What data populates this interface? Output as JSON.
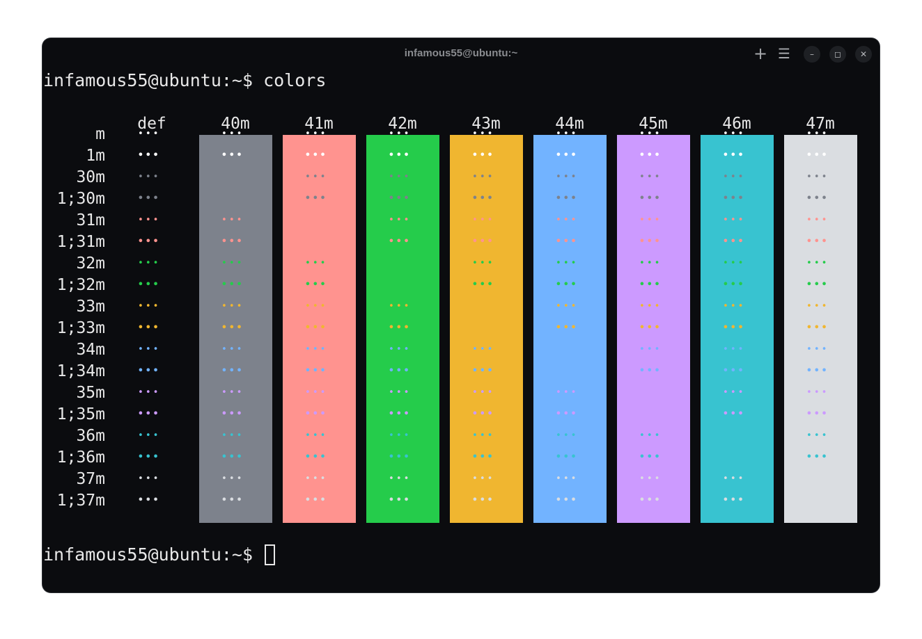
{
  "window": {
    "title": "infamous55@ubuntu:~"
  },
  "titlebar_icons": [
    "plus-icon",
    "menu-icon",
    "minimize-icon",
    "maximize-icon",
    "close-icon"
  ],
  "terminal": {
    "prompt1": "infamous55@ubuntu:~$ colors",
    "prompt2": "infamous55@ubuntu:~$ "
  },
  "table": {
    "sample_text": "•••",
    "columns": [
      {
        "label": "def",
        "bg": null
      },
      {
        "label": "40m",
        "bg": "#7d828c"
      },
      {
        "label": "41m",
        "bg": "#ff938f"
      },
      {
        "label": "42m",
        "bg": "#25cc4b"
      },
      {
        "label": "43m",
        "bg": "#f0b630"
      },
      {
        "label": "44m",
        "bg": "#72b3ff"
      },
      {
        "label": "45m",
        "bg": "#cc9aff"
      },
      {
        "label": "46m",
        "bg": "#38c3d0"
      },
      {
        "label": "47m",
        "bg": "#dadde1"
      }
    ],
    "rows": [
      {
        "label": "m",
        "fg": "#ffffff"
      },
      {
        "label": "1m",
        "fg": "#ffffff"
      },
      {
        "label": "30m",
        "fg": "#7d828c"
      },
      {
        "label": "1;30m",
        "fg": "#7d828c"
      },
      {
        "label": "31m",
        "fg": "#ff938f"
      },
      {
        "label": "1;31m",
        "fg": "#ff938f"
      },
      {
        "label": "32m",
        "fg": "#25cc4b"
      },
      {
        "label": "1;32m",
        "fg": "#25cc4b"
      },
      {
        "label": "33m",
        "fg": "#f0b630"
      },
      {
        "label": "1;33m",
        "fg": "#f0b630"
      },
      {
        "label": "34m",
        "fg": "#72b3ff"
      },
      {
        "label": "1;34m",
        "fg": "#72b3ff"
      },
      {
        "label": "35m",
        "fg": "#cc9aff"
      },
      {
        "label": "1;35m",
        "fg": "#cc9aff"
      },
      {
        "label": "36m",
        "fg": "#38c3d0"
      },
      {
        "label": "1;36m",
        "fg": "#38c3d0"
      },
      {
        "label": "37m",
        "fg": "#dadde1"
      },
      {
        "label": "1;37m",
        "fg": "#dadde1"
      }
    ]
  }
}
